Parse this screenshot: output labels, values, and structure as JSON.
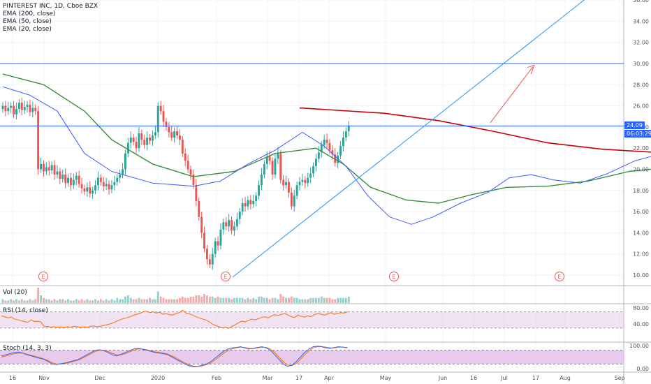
{
  "header": {
    "title": "PINTEREST INC, 1D, Cboe BZX",
    "indicators": [
      "EMA (200, close)",
      "EMA (50, close)",
      "EMA (20, close)"
    ]
  },
  "colors": {
    "up": "#26a69a",
    "down": "#ef5350",
    "ema200": "#cc0000",
    "ema50": "#388e3c",
    "ema20": "#3d5afe",
    "hline": "#2962ff",
    "trend": "#2196f3",
    "arrow": "#ef5350",
    "rsi_line": "#ff6d00",
    "rsi_band": "#e1bee7",
    "stoch_k": "#2962ff",
    "stoch_d": "#ff6d00",
    "stoch_band": "#e1bee7"
  },
  "price_labels": {
    "last": "24.09",
    "countdown": "06:03:29"
  },
  "panes": {
    "volume": "Vol (20)",
    "rsi": "RSI (14, close)",
    "stoch": "Stoch (14, 3, 3)"
  },
  "chart_data": {
    "type": "line",
    "title": "PINTEREST INC, 1D, Cboe BZX",
    "x_ticks": [
      "16",
      "Nov",
      "Dec",
      "2020",
      "Feb",
      "Mar",
      "17",
      "Apr",
      "May",
      "Jun",
      "16",
      "Jul",
      "17",
      "Aug",
      "Sep"
    ],
    "y_ticks": [
      "10.00",
      "12.00",
      "14.00",
      "16.00",
      "18.00",
      "20.00",
      "22.00",
      "24.00",
      "26.00",
      "28.00",
      "30.00",
      "32.00",
      "34.00",
      "36.00"
    ],
    "ylim": [
      9,
      36
    ],
    "earnings_markers": [
      "E",
      "E",
      "E",
      "E"
    ],
    "rsi_ticks": [
      "80.00",
      "40.00"
    ],
    "stoch_ticks": [
      "100.00",
      "0.00"
    ],
    "horizontal_levels": [
      30.0,
      24.1
    ],
    "close_series": [
      26.0,
      25.5,
      25.8,
      26.0,
      25.2,
      25.7,
      26.3,
      25.6,
      25.9,
      26.1,
      25.4,
      25.8,
      25.5,
      20.0,
      20.5,
      19.8,
      20.2,
      19.9,
      20.4,
      19.5,
      19.8,
      19.1,
      19.5,
      18.7,
      19.2,
      18.5,
      19.0,
      19.4,
      18.6,
      18.2,
      17.9,
      18.3,
      17.7,
      18.0,
      18.5,
      19.2,
      18.8,
      18.4,
      18.6,
      18.1,
      18.5,
      18.8,
      19.2,
      19.5,
      20.0,
      21.5,
      22.5,
      23.0,
      22.6,
      22.0,
      23.4,
      22.8,
      22.3,
      23.0,
      22.7,
      23.2,
      23.5,
      26.0,
      25.5,
      24.5,
      24.0,
      23.5,
      23.0,
      23.6,
      23.2,
      22.8,
      21.5,
      20.8,
      20.0,
      19.5,
      18.5,
      17.0,
      15.5,
      14.0,
      12.5,
      11.5,
      11.0,
      12.0,
      13.2,
      12.8,
      14.3,
      15.0,
      14.6,
      15.2,
      14.2,
      14.6,
      15.3,
      16.0,
      16.8,
      16.5,
      17.1,
      16.7,
      17.0,
      17.5,
      18.5,
      19.5,
      20.5,
      21.2,
      20.8,
      19.5,
      21.0,
      21.5,
      19.0,
      18.5,
      18.8,
      17.8,
      16.5,
      17.5,
      18.5,
      18.8,
      19.0,
      18.7,
      19.2,
      19.6,
      20.3,
      21.0,
      21.6,
      22.3,
      22.8,
      22.5,
      21.8,
      21.4,
      20.6,
      21.3,
      22.2,
      23.0,
      23.6,
      24.1
    ],
    "ema200_series": [
      [
        109,
        25.8
      ],
      [
        140,
        25.3
      ],
      [
        160,
        24.6
      ],
      [
        180,
        23.6
      ],
      [
        200,
        22.5
      ],
      [
        220,
        21.9
      ],
      [
        240,
        21.6
      ],
      [
        258,
        21.6
      ],
      [
        263,
        21.7
      ]
    ],
    "ema50_series": [
      [
        0,
        29.0
      ],
      [
        15,
        28.0
      ],
      [
        30,
        25.5
      ],
      [
        40,
        22.8
      ],
      [
        55,
        20.5
      ],
      [
        70,
        19.3
      ],
      [
        85,
        19.8
      ],
      [
        100,
        21.5
      ],
      [
        115,
        22.0
      ],
      [
        125,
        20.5
      ],
      [
        135,
        18.3
      ],
      [
        148,
        17.1
      ],
      [
        160,
        16.8
      ],
      [
        172,
        17.6
      ],
      [
        185,
        18.3
      ],
      [
        200,
        18.4
      ],
      [
        215,
        18.9
      ],
      [
        230,
        19.8
      ],
      [
        245,
        20.2
      ],
      [
        263,
        20.3
      ]
    ],
    "ema20_series": [
      [
        0,
        27.8
      ],
      [
        10,
        27.0
      ],
      [
        20,
        25.5
      ],
      [
        30,
        21.5
      ],
      [
        40,
        19.8
      ],
      [
        55,
        18.7
      ],
      [
        70,
        18.4
      ],
      [
        80,
        18.9
      ],
      [
        90,
        20.5
      ],
      [
        100,
        21.8
      ],
      [
        110,
        23.5
      ],
      [
        118,
        22.2
      ],
      [
        126,
        20.3
      ],
      [
        134,
        17.5
      ],
      [
        142,
        15.5
      ],
      [
        150,
        14.8
      ],
      [
        158,
        15.5
      ],
      [
        168,
        16.8
      ],
      [
        178,
        17.8
      ],
      [
        186,
        19.2
      ],
      [
        194,
        19.5
      ],
      [
        202,
        19.0
      ],
      [
        212,
        18.7
      ],
      [
        222,
        19.6
      ],
      [
        232,
        20.8
      ],
      [
        242,
        21.5
      ],
      [
        250,
        21.2
      ],
      [
        256,
        21.8
      ],
      [
        263,
        22.3
      ]
    ],
    "volume_series": [
      3,
      2,
      2,
      3,
      2,
      3,
      2,
      3,
      2,
      2,
      3,
      2,
      3,
      12,
      6,
      4,
      3,
      3,
      2,
      3,
      2,
      3,
      3,
      2,
      3,
      2,
      2,
      3,
      2,
      3,
      2,
      3,
      2,
      2,
      3,
      2,
      3,
      2,
      3,
      2,
      3,
      2,
      4,
      3,
      3,
      5,
      6,
      4,
      3,
      3,
      4,
      3,
      3,
      3,
      4,
      3,
      3,
      9,
      5,
      4,
      3,
      3,
      3,
      3,
      3,
      4,
      5,
      4,
      4,
      5,
      5,
      6,
      6,
      5,
      7,
      6,
      5,
      5,
      4,
      5,
      4,
      4,
      4,
      4,
      3,
      4,
      4,
      4,
      4,
      3,
      4,
      3,
      4,
      3,
      5,
      5,
      4,
      4,
      3,
      4,
      4,
      3,
      7,
      5,
      4,
      4,
      5,
      4,
      4,
      3,
      3,
      3,
      3,
      4,
      4,
      4,
      4,
      5,
      4,
      4,
      4,
      3,
      3,
      4,
      4,
      4,
      4,
      5
    ],
    "rsi_series": [
      60,
      58,
      55,
      57,
      52,
      50,
      48,
      46,
      44,
      50,
      46,
      47,
      45,
      33,
      34,
      32,
      33,
      32,
      33,
      31,
      33,
      32,
      34,
      33,
      32,
      33,
      31,
      34,
      35,
      33,
      34,
      36,
      38,
      40,
      43,
      47,
      50,
      53,
      55,
      58,
      61,
      64,
      66,
      70,
      72,
      68,
      70,
      67,
      69,
      64,
      66,
      63,
      62,
      66,
      68,
      74,
      67,
      65,
      62,
      58,
      55,
      52,
      50,
      46,
      40,
      36,
      33,
      30,
      32,
      29,
      34,
      38,
      43,
      47,
      45,
      49,
      52,
      50,
      53,
      56,
      58,
      55,
      60,
      63,
      61,
      64,
      66,
      62,
      58,
      56,
      62,
      59,
      57,
      60,
      58,
      63,
      66,
      64,
      62,
      65,
      68,
      64,
      66,
      68,
      67,
      70
    ],
    "stoch_k_series": [
      55,
      60,
      65,
      70,
      72,
      68,
      60,
      55,
      50,
      45,
      40,
      30,
      20,
      18,
      22,
      25,
      30,
      35,
      40,
      50,
      60,
      70,
      80,
      82,
      78,
      70,
      60,
      55,
      62,
      70,
      78,
      85,
      88,
      84,
      80,
      75,
      70,
      68,
      65,
      60,
      50,
      40,
      30,
      20,
      12,
      8,
      10,
      15,
      20,
      30,
      45,
      60,
      75,
      85,
      90,
      92,
      95,
      90,
      85,
      88,
      92,
      95,
      90,
      80,
      60,
      40,
      20,
      10,
      15,
      30,
      50,
      70,
      85,
      95,
      98,
      95,
      90,
      88,
      92,
      95,
      93,
      90
    ],
    "stoch_d_series": [
      50,
      55,
      60,
      65,
      68,
      67,
      63,
      58,
      53,
      48,
      42,
      35,
      25,
      20,
      20,
      22,
      27,
      32,
      37,
      45,
      55,
      65,
      75,
      80,
      80,
      75,
      66,
      60,
      60,
      65,
      73,
      80,
      85,
      85,
      82,
      78,
      73,
      70,
      67,
      63,
      55,
      45,
      35,
      25,
      16,
      11,
      10,
      12,
      17,
      25,
      38,
      52,
      67,
      78,
      86,
      90,
      93,
      92,
      88,
      87,
      90,
      93,
      92,
      85,
      70,
      50,
      30,
      16,
      13,
      22,
      40,
      60,
      78,
      90,
      95,
      96,
      93,
      90,
      90,
      93,
      93,
      92
    ]
  }
}
